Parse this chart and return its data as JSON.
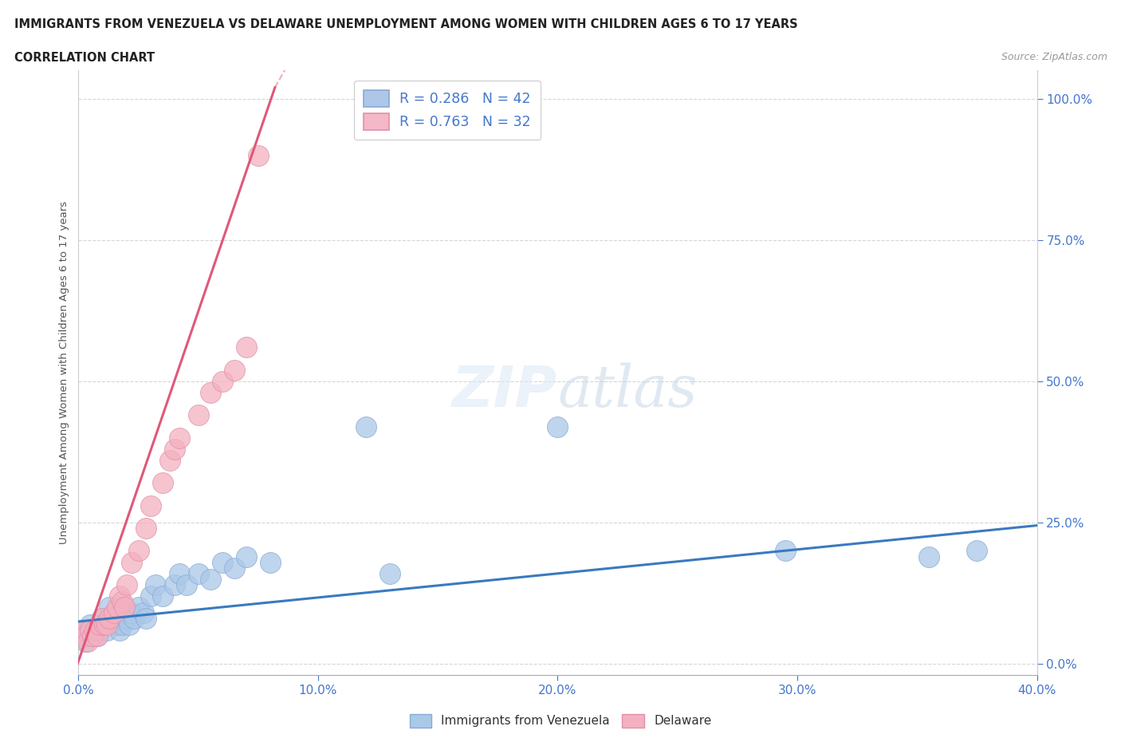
{
  "title_line1": "IMMIGRANTS FROM VENEZUELA VS DELAWARE UNEMPLOYMENT AMONG WOMEN WITH CHILDREN AGES 6 TO 17 YEARS",
  "title_line2": "CORRELATION CHART",
  "source": "Source: ZipAtlas.com",
  "xlim": [
    0.0,
    0.4
  ],
  "ylim": [
    -0.02,
    1.05
  ],
  "yticks": [
    0.0,
    0.25,
    0.5,
    0.75,
    1.0
  ],
  "xticks": [
    0.0,
    0.1,
    0.2,
    0.3,
    0.4
  ],
  "legend_label1": "R = 0.286   N = 42",
  "legend_label2": "R = 0.763   N = 32",
  "legend_color1": "#aec6e8",
  "legend_color2": "#f4b8c8",
  "watermark": "ZIPatlas",
  "color_blue": "#aac8e8",
  "color_pink": "#f4b0c0",
  "line_blue": "#3a7abf",
  "line_pink": "#e05878",
  "tick_color": "#4477cc",
  "ylabel_color": "#555555",
  "scatter_blue_x": [
    0.002,
    0.003,
    0.004,
    0.005,
    0.006,
    0.007,
    0.008,
    0.009,
    0.01,
    0.011,
    0.012,
    0.013,
    0.015,
    0.016,
    0.017,
    0.018,
    0.019,
    0.02,
    0.021,
    0.022,
    0.023,
    0.025,
    0.027,
    0.028,
    0.03,
    0.032,
    0.035,
    0.04,
    0.042,
    0.045,
    0.05,
    0.055,
    0.06,
    0.065,
    0.07,
    0.08,
    0.12,
    0.13,
    0.2,
    0.295,
    0.355,
    0.375
  ],
  "scatter_blue_y": [
    0.06,
    0.04,
    0.05,
    0.07,
    0.05,
    0.06,
    0.05,
    0.07,
    0.08,
    0.07,
    0.06,
    0.1,
    0.08,
    0.07,
    0.06,
    0.07,
    0.09,
    0.08,
    0.07,
    0.09,
    0.08,
    0.1,
    0.09,
    0.08,
    0.12,
    0.14,
    0.12,
    0.14,
    0.16,
    0.14,
    0.16,
    0.15,
    0.18,
    0.17,
    0.19,
    0.18,
    0.42,
    0.16,
    0.42,
    0.2,
    0.19,
    0.2
  ],
  "scatter_pink_x": [
    0.002,
    0.003,
    0.004,
    0.005,
    0.006,
    0.007,
    0.008,
    0.009,
    0.01,
    0.011,
    0.012,
    0.013,
    0.015,
    0.016,
    0.017,
    0.018,
    0.019,
    0.02,
    0.022,
    0.025,
    0.028,
    0.03,
    0.035,
    0.038,
    0.04,
    0.042,
    0.05,
    0.055,
    0.06,
    0.065,
    0.07,
    0.075
  ],
  "scatter_pink_y": [
    0.06,
    0.05,
    0.04,
    0.06,
    0.05,
    0.06,
    0.05,
    0.07,
    0.08,
    0.07,
    0.07,
    0.08,
    0.09,
    0.1,
    0.12,
    0.11,
    0.1,
    0.14,
    0.18,
    0.2,
    0.24,
    0.28,
    0.32,
    0.36,
    0.38,
    0.4,
    0.44,
    0.48,
    0.5,
    0.52,
    0.56,
    0.9
  ],
  "blue_trendline_x": [
    0.0,
    0.4
  ],
  "blue_trendline_y": [
    0.075,
    0.245
  ],
  "pink_trendline_x": [
    -0.002,
    0.082
  ],
  "pink_trendline_y": [
    -0.02,
    1.02
  ]
}
